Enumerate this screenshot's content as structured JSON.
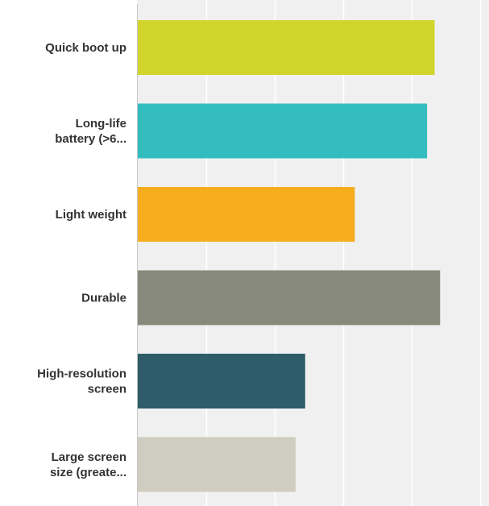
{
  "chart_data": {
    "type": "bar",
    "orientation": "horizontal",
    "categories": [
      [
        "Quick boot up"
      ],
      [
        "Long-life",
        "battery (>6..."
      ],
      [
        "Light weight"
      ],
      [
        "Durable"
      ],
      [
        "High-resolution",
        "screen"
      ],
      [
        "Large screen",
        "size (greate..."
      ]
    ],
    "values": [
      0.867,
      0.845,
      0.634,
      0.883,
      0.489,
      0.461
    ],
    "xlim": [
      0,
      1
    ],
    "grid": true,
    "colors": [
      "#d1d42b",
      "#33bdbf",
      "#f6ae1f",
      "#878a7a",
      "#2e5c68",
      "#cfcdbf"
    ],
    "background": "#f0f0f0",
    "grid_color": "#ffffff"
  }
}
